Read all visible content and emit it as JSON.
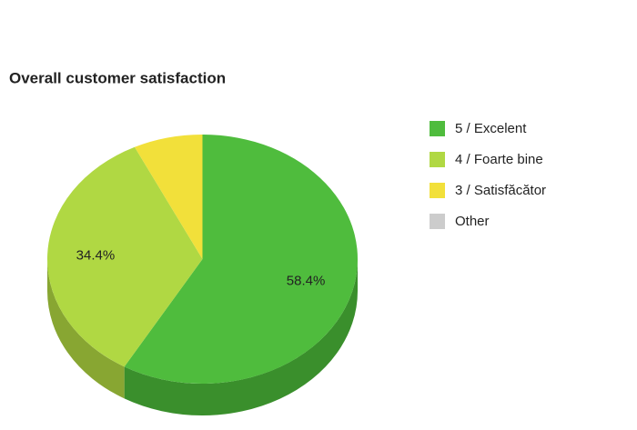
{
  "chart_data": {
    "type": "pie",
    "title": "Overall customer satisfaction",
    "categories": [
      "5 / Excelent",
      "4 / Foarte bine",
      "3 / Satisfăcător",
      "Other"
    ],
    "values": [
      58.4,
      34.4,
      7.2,
      0
    ],
    "value_labels": [
      "58.4%",
      "34.4%",
      null,
      null
    ],
    "colors": [
      "#4fbc3d",
      "#b0d843",
      "#f2e03a",
      "#cccccc"
    ],
    "side_colors": [
      "#3a8f2c",
      "#88a632",
      "#c0b02c",
      "#999999"
    ],
    "legend": "right"
  }
}
